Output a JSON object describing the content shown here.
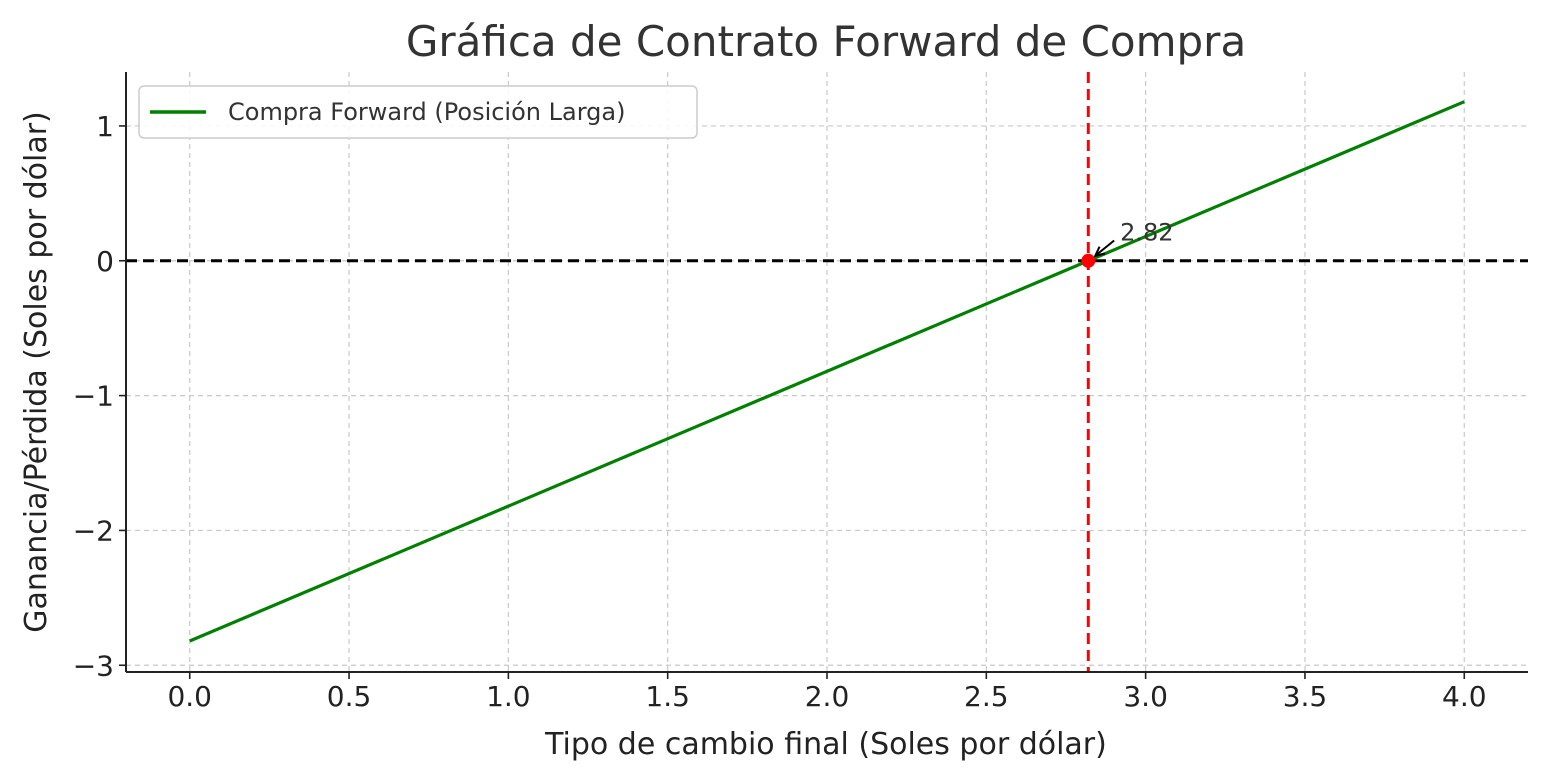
{
  "chart_data": {
    "type": "line",
    "title": "Gráfica de Contrato Forward de Compra",
    "xlabel": "Tipo de cambio final (Soles por dólar)",
    "ylabel": "Ganancia/Pérdida (Soles por dólar)",
    "xlim": [
      -0.2,
      4.2
    ],
    "ylim": [
      -3.05,
      1.4
    ],
    "xticks": [
      0.0,
      0.5,
      1.0,
      1.5,
      2.0,
      2.5,
      3.0,
      3.5,
      4.0
    ],
    "xtick_labels": [
      "0.0",
      "0.5",
      "1.0",
      "1.5",
      "2.0",
      "2.5",
      "3.0",
      "3.5",
      "4.0"
    ],
    "yticks": [
      -3,
      -2,
      -1,
      0,
      1
    ],
    "ytick_labels": [
      "−3",
      "−2",
      "−1",
      "0",
      "1"
    ],
    "grid": true,
    "legend_position": "top-left",
    "series": [
      {
        "name": "Compra Forward (Posición Larga)",
        "color": "#008000",
        "x": [
          0.0,
          4.0
        ],
        "y": [
          -2.82,
          1.18
        ]
      }
    ],
    "reference_lines": [
      {
        "orientation": "horizontal",
        "value": 0,
        "color": "#000000",
        "style": "dashed"
      },
      {
        "orientation": "vertical",
        "value": 2.82,
        "color": "#ff0000",
        "style": "dashed"
      }
    ],
    "annotations": [
      {
        "text": "2.82",
        "point": [
          2.82,
          0
        ],
        "text_at": [
          2.92,
          0.18
        ],
        "marker_color": "#ff0000"
      }
    ]
  }
}
